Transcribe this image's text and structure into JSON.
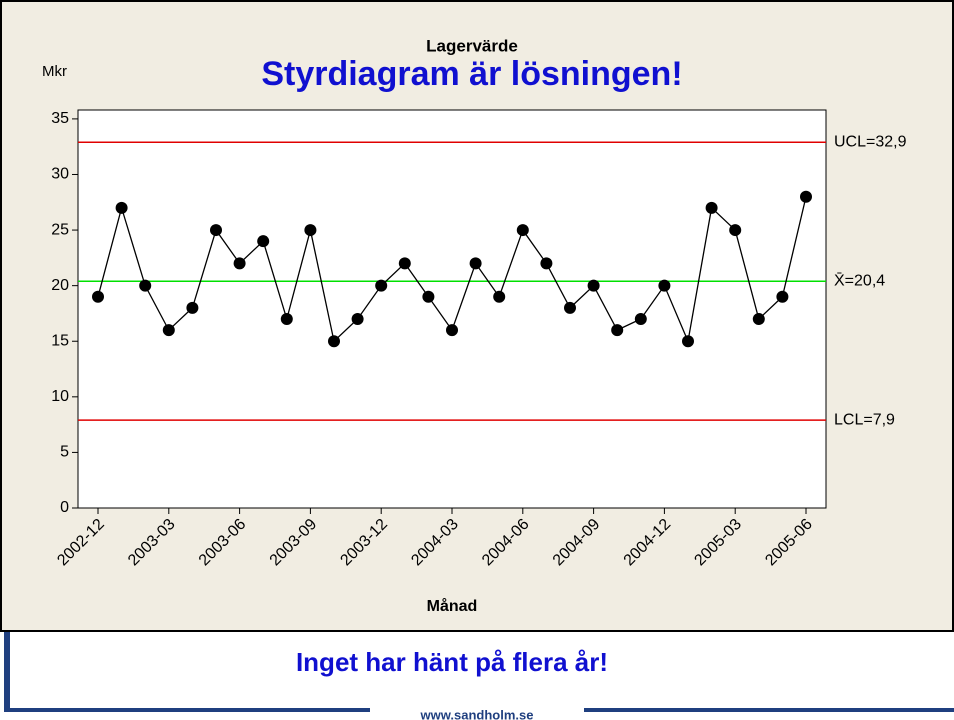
{
  "slide": {
    "headline": "Styrdiagram är lösningen!",
    "caption": "Inget har hänt på flera år!",
    "footer": "www.sandholm.se"
  },
  "chart_data": {
    "type": "line",
    "title": "Lagervärde",
    "y_label": "Mkr",
    "x_label": "Månad",
    "categories": [
      "2002-12",
      null,
      null,
      "2003-03",
      null,
      null,
      "2003-06",
      null,
      null,
      "2003-09",
      null,
      null,
      "2003-12",
      null,
      null,
      "2004-03",
      null,
      null,
      "2004-06",
      null,
      null,
      "2004-09",
      null,
      null,
      "2004-12",
      null,
      null,
      "2005-03",
      null,
      null,
      "2005-06"
    ],
    "values": [
      19,
      27,
      20,
      16,
      18,
      25,
      22,
      24,
      17,
      25,
      15,
      17,
      20,
      22,
      19,
      16,
      22,
      19,
      25,
      22,
      18,
      20,
      16,
      17,
      20,
      15,
      27,
      25,
      17,
      19,
      28
    ],
    "color": "#000000",
    "ylim": [
      0,
      35.8
    ],
    "yticks": [
      0,
      5,
      10,
      15,
      20,
      25,
      30,
      35
    ],
    "reference_lines": [
      {
        "value": 32.9,
        "label": "UCL=32,9",
        "color": "#e00000"
      },
      {
        "value": 20.4,
        "label": "X̄=20,4",
        "color": "#00e000"
      },
      {
        "value": 7.9,
        "label": "LCL=7,9",
        "color": "#e00000"
      }
    ]
  }
}
